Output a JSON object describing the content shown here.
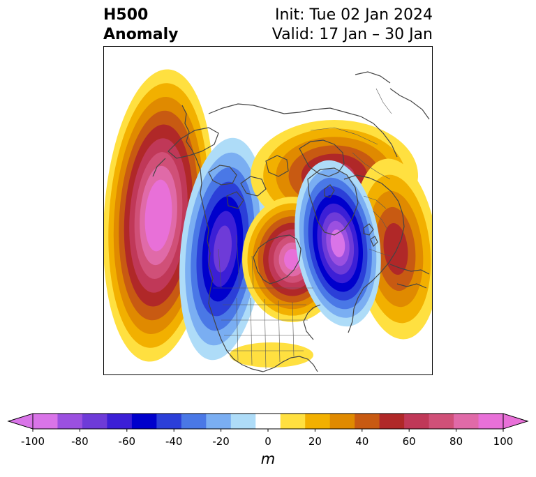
{
  "title": {
    "left_line1": "H500",
    "left_line2": "Anomaly",
    "right_line1": "Init: Tue 02 Jan 2024",
    "right_line2": "Valid: 17 Jan – 30 Jan"
  },
  "colorbar": {
    "units": "m",
    "ticks": [
      "-100",
      "-80",
      "-60",
      "-40",
      "-20",
      "0",
      "20",
      "40",
      "60",
      "80",
      "100"
    ],
    "levels": [
      -100,
      -90,
      -80,
      -70,
      -60,
      -50,
      -40,
      -30,
      -20,
      -10,
      10,
      20,
      30,
      40,
      50,
      60,
      70,
      80,
      90,
      100
    ],
    "colors": [
      "#d974e8",
      "#9b50e0",
      "#6e3bd8",
      "#3c1fd6",
      "#0000cc",
      "#2b3fd8",
      "#4a78e6",
      "#7aaef2",
      "#aedcf8",
      "#ffffff",
      "#ffe040",
      "#f2b000",
      "#e08a00",
      "#c85a12",
      "#b02828",
      "#c03858",
      "#d05078",
      "#e06aa8",
      "#e870d8"
    ]
  },
  "anomaly_features": [
    {
      "name": "NE Pacific ridge",
      "sign": "positive",
      "peak_m": 100
    },
    {
      "name": "Western North America trough",
      "sign": "negative",
      "peak_m": -70
    },
    {
      "name": "Hudson Bay ridge",
      "sign": "positive",
      "peak_m": 90
    },
    {
      "name": "North Atlantic / Greenland trough",
      "sign": "negative",
      "peak_m": -100
    },
    {
      "name": "Scandinavia / Arctic ridge",
      "sign": "positive",
      "peak_m": 60
    },
    {
      "name": "Eastern Europe ridge",
      "sign": "positive",
      "peak_m": 50
    },
    {
      "name": "Subtropical ridge south of US",
      "sign": "positive",
      "peak_m": 20
    }
  ]
}
